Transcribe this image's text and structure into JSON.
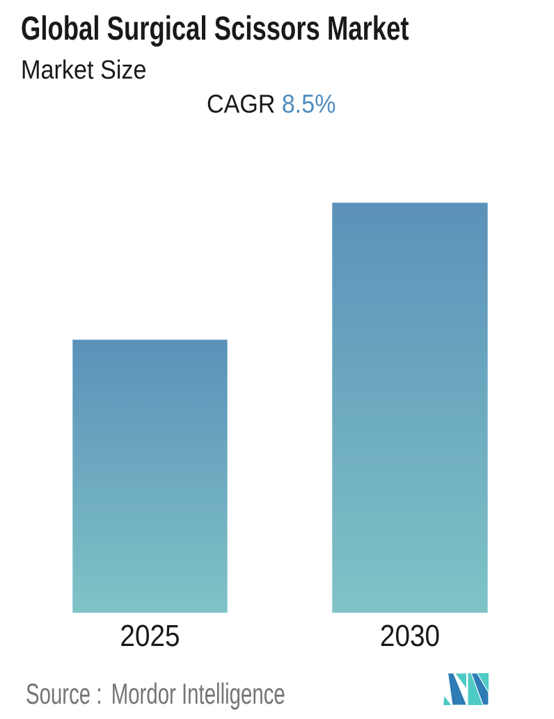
{
  "page": {
    "background": "#ffffff"
  },
  "header": {
    "title": "Global Surgical Scissors Market",
    "subtitle": "Market Size",
    "cagr_label": "CAGR",
    "cagr_value": "8.5%"
  },
  "chart_data": {
    "type": "bar",
    "title": "Global Surgical Scissors Market",
    "subtitle": "Market Size",
    "annotation": "CAGR 8.5%",
    "categories": [
      "2025",
      "2030"
    ],
    "series": [
      {
        "name": "Market Size",
        "relative_values": [
          1.0,
          1.5
        ]
      }
    ],
    "value_axis_visible": false,
    "value_labels_visible": false,
    "grid": false,
    "legend": false,
    "bar_gradient_top": "#5b91ba",
    "bar_gradient_bottom": "#7fc3c6"
  },
  "footer": {
    "source_label": "Source :",
    "source_name": "Mordor Intelligence",
    "logo_name": "mordor-intelligence-logo"
  },
  "colors": {
    "text_dark": "#191919",
    "cagr_blue": "#4f8bbd",
    "bar_top": "#5b91ba",
    "bar_bottom": "#7fc3c6",
    "source_gray": "#757575",
    "logo_teal": "#4ecbc4",
    "logo_blue": "#2d7cb5"
  }
}
